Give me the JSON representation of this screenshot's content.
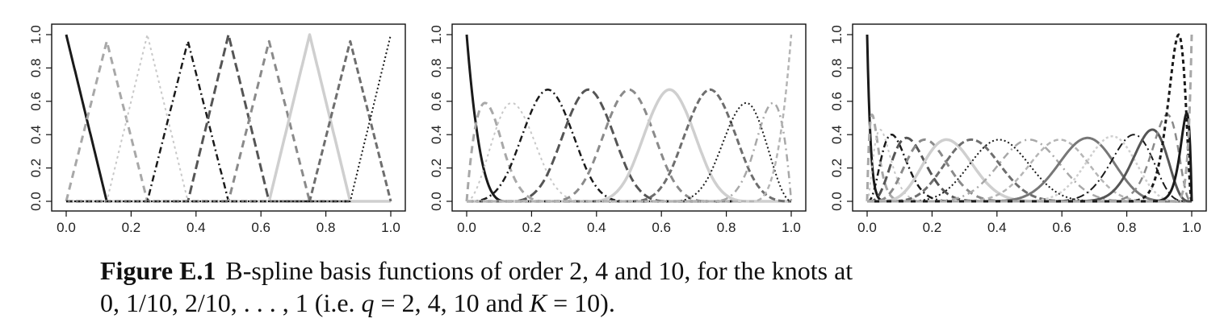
{
  "figure": {
    "label": "Figure E.1",
    "caption_line1": "B-spline basis functions of order 2, 4 and 10, for the knots at",
    "caption_line2_prefix": "0, 1/10, 2/10, . . . , 1 (i.e. ",
    "caption_q": "q",
    "caption_q_values": " = 2, 4, 10 and ",
    "caption_K": "K",
    "caption_K_value": " = 10)."
  },
  "chart_data": [
    {
      "type": "line",
      "title": "",
      "description_values": "B-spline basis, order 2",
      "order": 2,
      "knots": [
        0,
        0.1,
        0.2,
        0.3,
        0.4,
        0.5,
        0.6,
        0.7,
        0.8,
        0.9,
        1
      ],
      "xlim": [
        0,
        1
      ],
      "ylim": [
        0,
        1
      ],
      "x_ticks": [
        "0.0",
        "0.2",
        "0.4",
        "0.6",
        "0.8",
        "1.0"
      ],
      "y_ticks": [
        "0.0",
        "0.2",
        "0.4",
        "0.6",
        "0.8",
        "1.0"
      ],
      "basis_peaks": [
        {
          "x": 0.0,
          "y": 1.0
        },
        {
          "x": 0.125,
          "y": 0.96
        },
        {
          "x": 0.25,
          "y": 1.0
        },
        {
          "x": 0.375,
          "y": 0.96
        },
        {
          "x": 0.5,
          "y": 1.0
        },
        {
          "x": 0.625,
          "y": 0.96
        },
        {
          "x": 0.75,
          "y": 1.0
        },
        {
          "x": 0.875,
          "y": 0.96
        },
        {
          "x": 1.0,
          "y": 1.0
        }
      ],
      "colors": [
        "#1a1a1a",
        "#a8a8a8",
        "#c8c8c8",
        "#1a1a1a",
        "#555555",
        "#8a8a8a",
        "#cfcfcf",
        "#6e6e6e",
        "#1a1a1a"
      ]
    },
    {
      "type": "line",
      "title": "",
      "order": 4,
      "knots": [
        0,
        0.1,
        0.2,
        0.3,
        0.4,
        0.5,
        0.6,
        0.7,
        0.8,
        0.9,
        1
      ],
      "xlim": [
        0,
        1
      ],
      "ylim": [
        0,
        1
      ],
      "x_ticks": [
        "0.0",
        "0.2",
        "0.4",
        "0.6",
        "0.8",
        "1.0"
      ],
      "y_ticks": [
        "0.0",
        "0.2",
        "0.4",
        "0.6",
        "0.8",
        "1.0"
      ],
      "basis_peaks": [
        {
          "x": 0.0,
          "y": 1.0
        },
        {
          "x": 0.06,
          "y": 0.59
        },
        {
          "x": 0.14,
          "y": 0.59
        },
        {
          "x": 0.25,
          "y": 0.67
        },
        {
          "x": 0.375,
          "y": 0.67
        },
        {
          "x": 0.5,
          "y": 0.67
        },
        {
          "x": 0.625,
          "y": 0.67
        },
        {
          "x": 0.75,
          "y": 0.67
        },
        {
          "x": 0.86,
          "y": 0.59
        },
        {
          "x": 0.94,
          "y": 0.59
        },
        {
          "x": 1.0,
          "y": 1.0
        }
      ],
      "colors": [
        "#1a1a1a",
        "#a8a8a8",
        "#c8c8c8",
        "#1a1a1a",
        "#555555",
        "#8a8a8a",
        "#cfcfcf",
        "#6e6e6e",
        "#1a1a1a",
        "#a8a8a8",
        "#b5b5b5"
      ]
    },
    {
      "type": "line",
      "title": "",
      "order": 10,
      "knots": [
        0,
        0.1,
        0.2,
        0.3,
        0.4,
        0.5,
        0.6,
        0.7,
        0.8,
        0.9,
        1
      ],
      "xlim": [
        0,
        1
      ],
      "ylim": [
        0,
        1
      ],
      "x_ticks": [
        "0.0",
        "0.2",
        "0.4",
        "0.6",
        "0.8",
        "1.0"
      ],
      "y_ticks": [
        "0.0",
        "0.2",
        "0.4",
        "0.6",
        "0.8",
        "1.0"
      ],
      "basis_peaks": [
        {
          "x": 0.0,
          "y": 1.0
        },
        {
          "x": 0.02,
          "y": 0.52
        },
        {
          "x": 0.05,
          "y": 0.43
        },
        {
          "x": 0.09,
          "y": 0.4
        },
        {
          "x": 0.15,
          "y": 0.38
        },
        {
          "x": 0.22,
          "y": 0.37
        },
        {
          "x": 0.3,
          "y": 0.37
        },
        {
          "x": 0.4,
          "y": 0.37
        },
        {
          "x": 0.5,
          "y": 0.37
        },
        {
          "x": 0.6,
          "y": 0.37
        },
        {
          "x": 0.7,
          "y": 0.37
        },
        {
          "x": 0.78,
          "y": 0.38
        },
        {
          "x": 0.85,
          "y": 0.39
        },
        {
          "x": 0.91,
          "y": 0.4
        },
        {
          "x": 0.95,
          "y": 0.43
        },
        {
          "x": 0.98,
          "y": 0.52
        },
        {
          "x": 1.0,
          "y": 1.0
        }
      ],
      "colors": [
        "#1a1a1a",
        "#a8a8a8",
        "#c8c8c8",
        "#1a1a1a",
        "#555555",
        "#8a8a8a",
        "#cfcfcf",
        "#6e6e6e",
        "#1a1a1a",
        "#a8a8a8",
        "#b5b5b5",
        "#777777",
        "#cfcfcf",
        "#1a1a1a",
        "#555555",
        "#8a8a8a",
        "#1a1a1a"
      ]
    }
  ]
}
